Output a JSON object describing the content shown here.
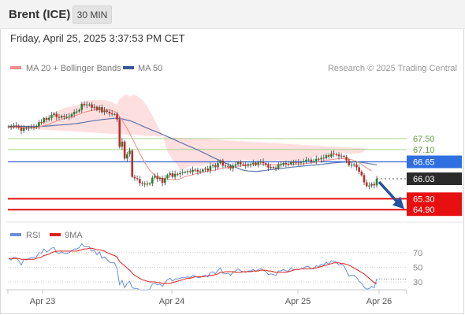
{
  "header": {
    "instrument": "Brent (ICE)",
    "timeframe": "30 MIN"
  },
  "timestamp": "Friday, April 25, 2025 3:37:53 PM CET",
  "watermark": "Research © 2025 Trading Central",
  "legend": {
    "ma20_label": "MA 20 + Bollinger Bands",
    "ma50_label": "MA 50",
    "rsi_label": "RSI",
    "rsi_ma_label": "9MA"
  },
  "colors": {
    "ma20": "#f28b8b",
    "ma50": "#36569c",
    "bands": "#fdd4d4",
    "rsi": "#6a8fd6",
    "rsi_ma": "#e02020",
    "support": "#e01010",
    "resistance_green": "#a9d28a",
    "pivot_blue": "#3a63d8",
    "candle_up": "#2e7d32",
    "candle_down": "#c62828",
    "arrow": "#2452a0"
  },
  "chart_data": [
    {
      "type": "candlestick",
      "title": "Brent (ICE)",
      "timeframe": "30 MIN",
      "x_ticks": [
        "Apr 23",
        "Apr 24",
        "Apr 25",
        "Apr 26"
      ],
      "levels": [
        {
          "value": 67.5,
          "label": "67.50",
          "kind": "resistance"
        },
        {
          "value": 67.1,
          "label": "67.10",
          "kind": "resistance"
        },
        {
          "value": 66.65,
          "label": "66.65",
          "kind": "pivot"
        },
        {
          "value": 66.03,
          "label": "66.03",
          "kind": "last_price"
        },
        {
          "value": 65.3,
          "label": "65.30",
          "kind": "support"
        },
        {
          "value": 64.9,
          "label": "64.90",
          "kind": "support"
        }
      ],
      "close": [
        67.95,
        67.92,
        67.98,
        67.97,
        67.9,
        67.79,
        67.89,
        67.87,
        67.9,
        67.93,
        67.92,
        67.96,
        68.1,
        68.09,
        68.25,
        68.19,
        68.26,
        68.36,
        68.41,
        68.29,
        68.27,
        68.33,
        68.29,
        68.29,
        68.31,
        68.39,
        68.48,
        68.49,
        68.55,
        68.77,
        68.73,
        68.75,
        68.75,
        68.63,
        68.66,
        68.55,
        68.65,
        68.47,
        68.53,
        68.48,
        68.42,
        68.4,
        68.4,
        68.2,
        67.2,
        67.39,
        66.77,
        66.93,
        67.06,
        66.1,
        66.05,
        66.02,
        65.87,
        65.84,
        65.85,
        65.83,
        65.86,
        66.07,
        66.13,
        66.02,
        66.06,
        65.88,
        66.05,
        66.17,
        66.23,
        66.1,
        66.21,
        66.2,
        66.24,
        66.27,
        66.28,
        66.31,
        66.28,
        66.36,
        66.35,
        66.29,
        66.3,
        66.37,
        66.4,
        66.33,
        66.5,
        66.52,
        66.45,
        66.6,
        66.69,
        66.51,
        66.48,
        66.5,
        66.41,
        66.51,
        66.56,
        66.65,
        66.56,
        66.55,
        66.51,
        66.56,
        66.57,
        66.62,
        66.54,
        66.63,
        66.65,
        66.6,
        66.54,
        66.44,
        66.46,
        66.44,
        66.41,
        66.55,
        66.55,
        66.61,
        66.57,
        66.56,
        66.65,
        66.61,
        66.63,
        66.61,
        66.64,
        66.68,
        66.73,
        66.73,
        66.67,
        66.67,
        66.76,
        66.74,
        66.8,
        66.78,
        66.89,
        66.84,
        66.95,
        66.93,
        66.92,
        66.85,
        66.86,
        66.83,
        66.7,
        66.53,
        66.54,
        66.55,
        66.45,
        66.29,
        66.16,
        65.9,
        65.76,
        65.78,
        65.84,
        65.79,
        66.03
      ],
      "ma20": [
        67.9,
        67.91,
        67.91,
        67.92,
        67.92,
        67.91,
        67.91,
        67.91,
        67.9,
        67.9,
        67.9,
        67.91,
        67.93,
        67.95,
        67.98,
        68.0,
        68.03,
        68.07,
        68.11,
        68.14,
        68.17,
        68.2,
        68.23,
        68.25,
        68.28,
        68.3,
        68.33,
        68.36,
        68.39,
        68.43,
        68.46,
        68.49,
        68.51,
        68.53,
        68.54,
        68.55,
        68.57,
        68.57,
        68.57,
        68.57,
        68.55,
        68.53,
        68.49,
        68.44,
        68.31,
        68.18,
        68.02,
        67.87,
        67.7,
        67.51,
        67.33,
        67.14,
        66.96,
        66.79,
        66.62,
        66.48,
        66.34,
        66.25,
        66.15,
        66.1,
        66.07,
        66.04,
        66.03,
        66.02,
        66.01,
        66.0,
        66.0,
        66.01,
        66.03,
        66.07,
        66.11,
        66.13,
        66.15,
        66.18,
        66.21,
        66.23,
        66.25,
        66.27,
        66.29,
        66.3,
        66.32,
        66.34,
        66.35,
        66.38,
        66.4,
        66.42,
        66.43,
        66.44,
        66.45,
        66.46,
        66.47,
        66.49,
        66.5,
        66.51,
        66.51,
        66.52,
        66.53,
        66.54,
        66.54,
        66.55,
        66.56,
        66.56,
        66.56,
        66.56,
        66.55,
        66.55,
        66.55,
        66.56,
        66.56,
        66.57,
        66.56,
        66.56,
        66.57,
        66.56,
        66.56,
        66.56,
        66.57,
        66.58,
        66.59,
        66.6,
        66.61,
        66.63,
        66.64,
        66.65,
        66.67,
        66.69,
        66.71,
        66.72,
        66.73,
        66.74,
        66.76,
        66.77,
        66.77,
        66.76,
        66.75,
        66.74,
        66.73,
        66.7,
        66.67,
        66.62,
        66.56,
        66.49,
        66.43,
        66.37,
        66.31
      ]
    },
    {
      "type": "line",
      "title": "RSI",
      "x_ticks": [
        "Apr 23",
        "Apr 24",
        "Apr 25",
        "Apr 26"
      ],
      "y_ticks": [
        30,
        50,
        70
      ],
      "ylim": [
        20,
        80
      ],
      "series": [
        {
          "name": "RSI",
          "values": [
            62,
            60,
            64,
            63,
            59,
            53,
            61,
            60,
            62,
            63,
            63,
            64,
            70,
            69,
            75,
            71,
            73,
            76,
            77,
            70,
            69,
            71,
            69,
            69,
            70,
            73,
            75,
            75,
            77,
            82,
            78,
            78,
            78,
            72,
            73,
            67,
            71,
            62,
            64,
            61,
            57,
            56,
            56,
            48,
            26,
            32,
            22,
            28,
            31,
            22,
            21,
            21,
            19,
            19,
            19,
            19,
            20,
            27,
            28,
            26,
            27,
            24,
            29,
            33,
            35,
            31,
            34,
            34,
            35,
            36,
            36,
            37,
            36,
            39,
            38,
            36,
            36,
            38,
            39,
            37,
            43,
            44,
            41,
            46,
            49,
            42,
            41,
            42,
            39,
            43,
            45,
            48,
            45,
            44,
            43,
            45,
            45,
            47,
            44,
            47,
            48,
            46,
            44,
            40,
            41,
            40,
            39,
            45,
            45,
            47,
            45,
            45,
            49,
            47,
            47,
            47,
            48,
            49,
            51,
            51,
            48,
            48,
            52,
            51,
            54,
            53,
            57,
            54,
            59,
            58,
            57,
            53,
            54,
            52,
            45,
            38,
            39,
            39,
            36,
            31,
            28,
            23,
            20,
            21,
            24,
            22,
            34
          ]
        },
        {
          "name": "9MA",
          "values": [
            62,
            62,
            62,
            62,
            62,
            61,
            61,
            61,
            61,
            61,
            61,
            62,
            63,
            64,
            66,
            67,
            68,
            70,
            71,
            72,
            72,
            72,
            72,
            72,
            72,
            72,
            72,
            72,
            73,
            74,
            75,
            75,
            76,
            76,
            75,
            74,
            74,
            73,
            72,
            70,
            69,
            67,
            66,
            64,
            58,
            55,
            52,
            49,
            46,
            42,
            39,
            37,
            35,
            33,
            32,
            31,
            30,
            30,
            30,
            29,
            29,
            28,
            28,
            28,
            28,
            29,
            30,
            31,
            32,
            33,
            34,
            35,
            35,
            36,
            37,
            37,
            37,
            37,
            38,
            38,
            39,
            39,
            40,
            41,
            43,
            43,
            44,
            44,
            44,
            44,
            43,
            43,
            43,
            44,
            44,
            44,
            44,
            45,
            45,
            45,
            46,
            46,
            46,
            45,
            45,
            44,
            43,
            43,
            43,
            43,
            43,
            44,
            45,
            46,
            47,
            47,
            48,
            48,
            48,
            48,
            48,
            49,
            49,
            50,
            51,
            52,
            53,
            54,
            55,
            56,
            56,
            56,
            55,
            55,
            54,
            53,
            51,
            49,
            47,
            45,
            43,
            41,
            38,
            35,
            32,
            29,
            28
          ]
        }
      ]
    }
  ]
}
